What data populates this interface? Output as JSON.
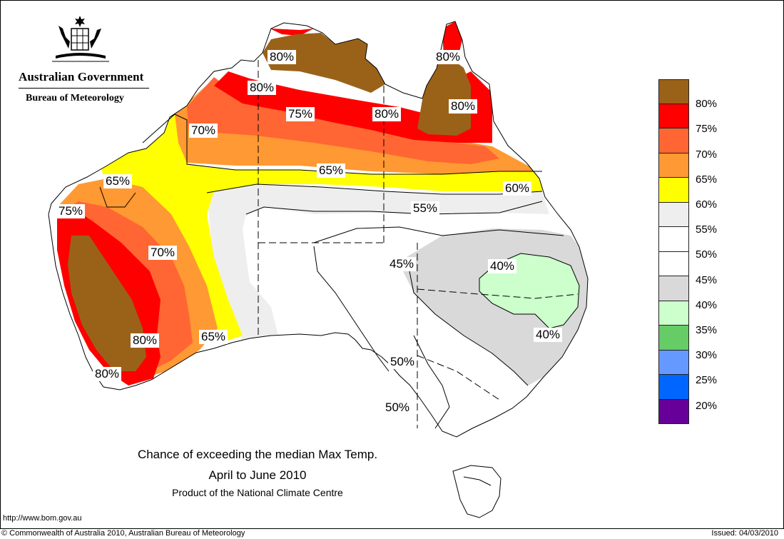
{
  "header": {
    "government": "Australian Government",
    "bureau": "Bureau of Meteorology"
  },
  "title": {
    "line1": "Chance of exceeding the median Max Temp.",
    "line2": "April to June 2010",
    "line3": "Product of the National Climate Centre"
  },
  "footer": {
    "url": "http://www.bom.gov.au",
    "copyright": "© Commonwealth of Australia 2010, Australian Bureau of Meteorology",
    "issued": "Issued: 04/03/2010"
  },
  "legend": [
    {
      "label": "80%",
      "color": "#9a6219"
    },
    {
      "label": "75%",
      "color": "#ff0000"
    },
    {
      "label": "70%",
      "color": "#ff6633"
    },
    {
      "label": "65%",
      "color": "#ff9933"
    },
    {
      "label": "60%",
      "color": "#ffff00"
    },
    {
      "label": "55%",
      "color": "#eeeeee"
    },
    {
      "label": "50%",
      "color": "#ffffff"
    },
    {
      "label": "45%",
      "color": "#ffffff"
    },
    {
      "label": "40%",
      "color": "#d9d9d9"
    },
    {
      "label": "35%",
      "color": "#ccffcc"
    },
    {
      "label": "30%",
      "color": "#66cc66"
    },
    {
      "label": "25%",
      "color": "#6699ff"
    },
    {
      "label": "20%",
      "color": "#0066ff"
    },
    {
      "label": "",
      "color": "#660099"
    }
  ],
  "map_labels": [
    {
      "text": "80%"
    },
    {
      "text": "80%"
    },
    {
      "text": "80%"
    },
    {
      "text": "75%"
    },
    {
      "text": "80%"
    },
    {
      "text": "80%"
    },
    {
      "text": "70%"
    },
    {
      "text": "65%"
    },
    {
      "text": "65%"
    },
    {
      "text": "60%"
    },
    {
      "text": "55%"
    },
    {
      "text": "75%"
    },
    {
      "text": "70%"
    },
    {
      "text": "45%"
    },
    {
      "text": "40%"
    },
    {
      "text": "40%"
    },
    {
      "text": "65%"
    },
    {
      "text": "80%"
    },
    {
      "text": "80%"
    },
    {
      "text": "50%"
    },
    {
      "text": "50%"
    }
  ]
}
